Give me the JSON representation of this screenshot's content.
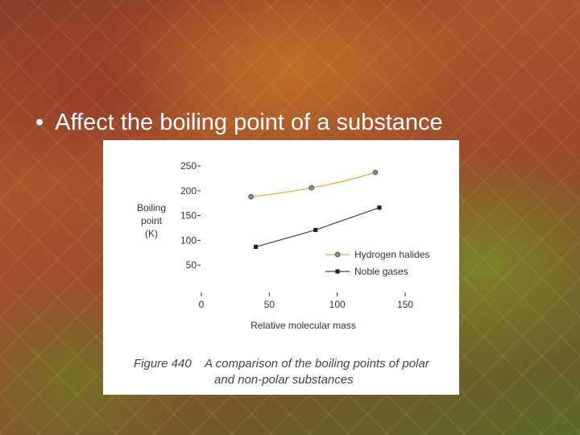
{
  "slide": {
    "bullet_symbol": "•",
    "bullet_text": "Affect the boiling point of a substance"
  },
  "figure": {
    "number": "Figure 440",
    "caption_line1": "A comparison of the boiling points of polar",
    "caption_line2": "and non-polar substances"
  },
  "chart_data": {
    "type": "line",
    "xlabel": "Relative molecular mass",
    "ylabel": [
      "Boiling",
      "point",
      "(K)"
    ],
    "xlim": [
      0,
      150
    ],
    "ylim": [
      0,
      250
    ],
    "x_ticks": [
      "0",
      "50",
      "100",
      "150"
    ],
    "y_ticks": [
      "50",
      "100",
      "150",
      "200",
      "250"
    ],
    "x_tick_values": [
      0,
      50,
      100,
      150
    ],
    "y_tick_values": [
      50,
      100,
      150,
      200,
      250
    ],
    "legend_position": "right",
    "series": [
      {
        "name": "Hydrogen halides",
        "color": "#e0b030",
        "marker": "circle",
        "marker_color": "#8a8a8a",
        "x": [
          36.5,
          81,
          128
        ],
        "y": [
          188,
          206,
          237
        ]
      },
      {
        "name": "Noble gases",
        "color": "#444444",
        "marker": "square",
        "marker_color": "#222222",
        "x": [
          40,
          84,
          131
        ],
        "y": [
          87,
          121,
          166
        ]
      }
    ]
  }
}
